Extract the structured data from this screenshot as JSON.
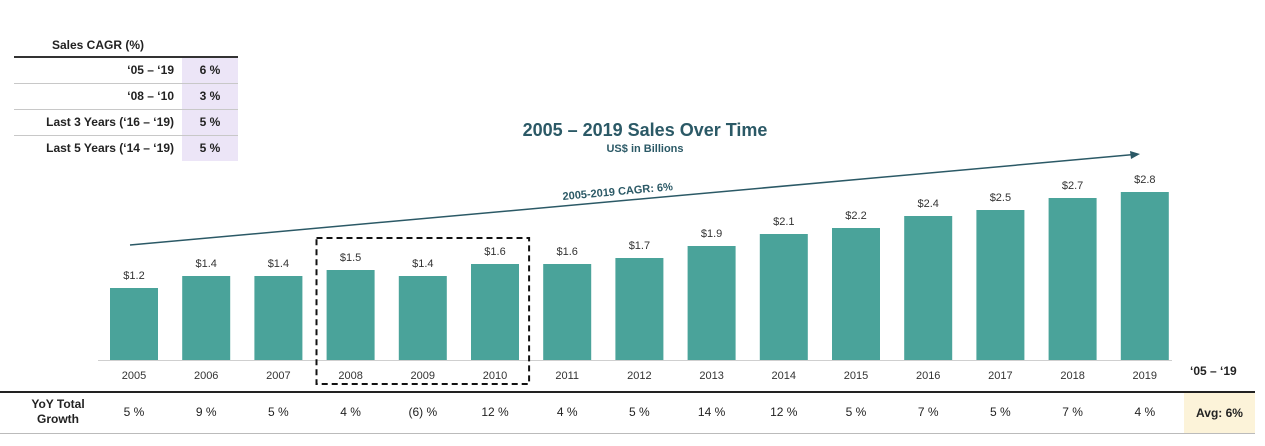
{
  "cagr_table": {
    "header": "Sales CAGR (%)",
    "rows": [
      {
        "label": "‘05 – ‘19",
        "value": "6 %"
      },
      {
        "label": "‘08 – ‘10",
        "value": "3 %"
      },
      {
        "label": "Last 3 Years (‘16 – ‘19)",
        "value": "5 %"
      },
      {
        "label": "Last 5 Years (‘14 – ‘19)",
        "value": "5 %"
      }
    ]
  },
  "chart_data": {
    "type": "bar",
    "title": "2005 – 2019 Sales Over Time",
    "subtitle": "US$ in Billions",
    "categories": [
      "2005",
      "2006",
      "2007",
      "2008",
      "2009",
      "2010",
      "2011",
      "2012",
      "2013",
      "2014",
      "2015",
      "2016",
      "2017",
      "2018",
      "2019"
    ],
    "values": [
      1.2,
      1.4,
      1.4,
      1.5,
      1.4,
      1.6,
      1.6,
      1.7,
      1.9,
      2.1,
      2.2,
      2.4,
      2.5,
      2.7,
      2.8
    ],
    "data_labels": [
      "$1.2",
      "$1.4",
      "$1.4",
      "$1.5",
      "$1.4",
      "$1.6",
      "$1.6",
      "$1.7",
      "$1.9",
      "$2.1",
      "$2.2",
      "$2.4",
      "$2.5",
      "$2.7",
      "$2.8"
    ],
    "trend_label": "2005-2019 CAGR: 6%",
    "highlighted_categories": [
      "2008",
      "2009",
      "2010"
    ],
    "ylim": [
      0,
      3.2
    ],
    "bar_color": "#4aa39a",
    "trend_color": "#2b5966"
  },
  "yoy": {
    "label": "YoY Total Growth",
    "values": [
      "5 %",
      "9 %",
      "5 %",
      "4 %",
      "(6) %",
      "12 %",
      "4 %",
      "5 %",
      "14 %",
      "12 %",
      "5 %",
      "7 %",
      "5 %",
      "7 %",
      "4 %"
    ],
    "period_label": "‘05 – ‘19",
    "average": "Avg: 6%",
    "average_color": "#fcf3d9"
  }
}
